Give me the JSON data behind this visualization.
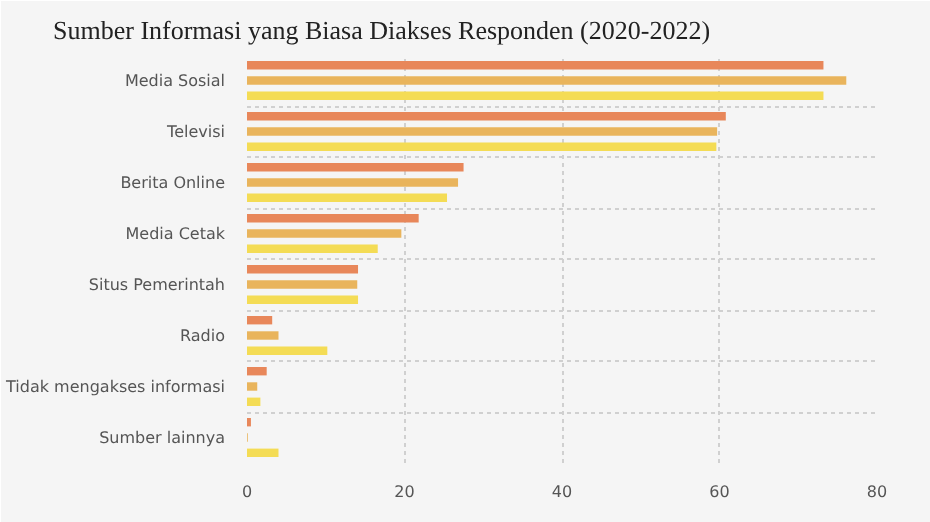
{
  "chart_data": {
    "type": "bar",
    "orientation": "horizontal",
    "title": "Sumber Informasi yang Biasa Diakses Responden (2020-2022)",
    "categories": [
      "Media Sosial",
      "Televisi",
      "Berita Online",
      "Media Cetak",
      "Situs Pemerintah",
      "Radio",
      "Tidak mengakses informasi",
      "Sumber lainnya"
    ],
    "series": [
      {
        "color": "#e8875a",
        "values": [
          73.2,
          60.8,
          27.5,
          21.8,
          14.1,
          3.2,
          2.5,
          0.5
        ]
      },
      {
        "color": "#e9b45c",
        "values": [
          76.1,
          59.7,
          26.8,
          19.6,
          14.0,
          4.0,
          1.3,
          0.1
        ]
      },
      {
        "color": "#f4dc55",
        "values": [
          73.2,
          59.6,
          25.4,
          16.6,
          14.1,
          10.2,
          1.7,
          4.0
        ]
      }
    ],
    "xlim": [
      0,
      80
    ],
    "xticks": [
      0,
      20,
      40,
      60,
      80
    ],
    "grid": true
  }
}
